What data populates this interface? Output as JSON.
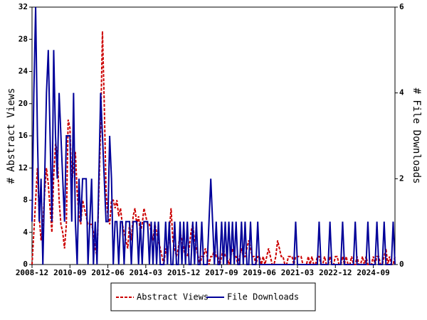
{
  "chart_data": {
    "type": "line",
    "ylabel": "# Abstract Views",
    "y2label": "# File Downloads",
    "x": [
      "2008-12",
      "2009-01",
      "2009-02",
      "2009-03",
      "2009-04",
      "2009-05",
      "2009-06",
      "2009-07",
      "2009-08",
      "2009-09",
      "2009-10",
      "2009-11",
      "2009-12",
      "2010-01",
      "2010-02",
      "2010-03",
      "2010-04",
      "2010-05",
      "2010-06",
      "2010-07",
      "2010-08",
      "2010-09",
      "2010-10",
      "2010-11",
      "2010-12",
      "2011-01",
      "2011-02",
      "2011-03",
      "2011-04",
      "2011-05",
      "2011-06",
      "2011-07",
      "2011-08",
      "2011-09",
      "2011-10",
      "2011-11",
      "2011-12",
      "2012-01",
      "2012-02",
      "2012-03",
      "2012-04",
      "2012-05",
      "2012-06",
      "2012-07",
      "2012-08",
      "2012-09",
      "2012-10",
      "2012-11",
      "2012-12",
      "2013-01",
      "2013-02",
      "2013-03",
      "2013-04",
      "2013-05",
      "2013-06",
      "2013-07",
      "2013-08",
      "2013-09",
      "2013-10",
      "2013-11",
      "2013-12",
      "2014-01",
      "2014-02",
      "2014-03",
      "2014-04",
      "2014-05",
      "2014-06",
      "2014-07",
      "2014-08",
      "2014-09",
      "2014-10",
      "2014-11",
      "2014-12",
      "2015-01",
      "2015-02",
      "2015-03",
      "2015-04",
      "2015-05",
      "2015-06",
      "2015-07",
      "2015-08",
      "2015-09",
      "2015-10",
      "2015-11",
      "2015-12",
      "2016-01",
      "2016-02",
      "2016-03",
      "2016-04",
      "2016-05",
      "2016-06",
      "2016-07",
      "2016-08",
      "2016-09",
      "2016-10",
      "2016-11",
      "2016-12",
      "2017-01",
      "2017-02",
      "2017-03",
      "2017-04",
      "2017-05",
      "2017-06",
      "2017-07",
      "2017-08",
      "2017-09",
      "2017-10",
      "2017-11",
      "2017-12",
      "2018-01",
      "2018-02",
      "2018-03",
      "2018-04",
      "2018-05",
      "2018-06",
      "2018-07",
      "2018-08",
      "2018-09",
      "2018-10",
      "2018-11",
      "2018-12",
      "2019-01",
      "2019-02",
      "2019-03",
      "2019-04",
      "2019-05",
      "2019-06",
      "2019-07",
      "2019-08",
      "2019-09",
      "2019-10",
      "2019-11",
      "2019-12",
      "2020-01",
      "2020-02",
      "2020-03",
      "2020-04",
      "2020-05",
      "2020-06",
      "2020-07",
      "2020-08",
      "2020-09",
      "2020-10",
      "2020-11",
      "2020-12",
      "2021-01",
      "2021-02",
      "2021-03",
      "2021-04",
      "2021-05",
      "2021-06",
      "2021-07",
      "2021-08",
      "2021-09",
      "2021-10",
      "2021-11",
      "2021-12",
      "2022-01",
      "2022-02",
      "2022-03",
      "2022-04",
      "2022-05",
      "2022-06",
      "2022-07",
      "2022-08",
      "2022-09",
      "2022-10",
      "2022-11",
      "2022-12",
      "2023-01",
      "2023-02",
      "2023-03",
      "2023-04",
      "2023-05",
      "2023-06",
      "2023-07",
      "2023-08",
      "2023-09",
      "2023-10",
      "2023-11",
      "2023-12",
      "2024-01",
      "2024-02",
      "2024-03",
      "2024-04",
      "2024-05",
      "2024-06",
      "2024-07",
      "2024-08",
      "2024-09",
      "2024-10",
      "2024-11",
      "2024-12",
      "2025-01",
      "2025-02",
      "2025-03",
      "2025-04",
      "2025-05",
      "2025-06",
      "2025-07",
      "2025-08",
      "2025-09"
    ],
    "series": [
      {
        "name": "Abstract Views",
        "color": "#cc0000",
        "dashed": true,
        "values": [
          0,
          4,
          8,
          12,
          6,
          3,
          5,
          9,
          12,
          10,
          7,
          4,
          11,
          15,
          14,
          8,
          5,
          4,
          2,
          5,
          18,
          17,
          10,
          12,
          14,
          9,
          6,
          5,
          8,
          7,
          6,
          5,
          5,
          5,
          4,
          2,
          1,
          9,
          17,
          29,
          20,
          9,
          6,
          5,
          8,
          8,
          7,
          8,
          6,
          7,
          5,
          4,
          3,
          2,
          5,
          3,
          6,
          7,
          5,
          6,
          4,
          5,
          7,
          6,
          5,
          5,
          4,
          3,
          5,
          4,
          3,
          2,
          1,
          0,
          2,
          1,
          4,
          7,
          3,
          2,
          1,
          2,
          4,
          3,
          2,
          1,
          1,
          2,
          4,
          5,
          3,
          2,
          1,
          0,
          1,
          1,
          2,
          1,
          0,
          1,
          1,
          2,
          1,
          1,
          0,
          1,
          2,
          1,
          1,
          0,
          1,
          2,
          1,
          1,
          0,
          1,
          2,
          1,
          1,
          2,
          3,
          2,
          1,
          1,
          0,
          1,
          1,
          0,
          1,
          0,
          1,
          2,
          1,
          0,
          0,
          1,
          3,
          2,
          1,
          1,
          0,
          0,
          1,
          1,
          1,
          0,
          1,
          1,
          1,
          1,
          0,
          0,
          0,
          1,
          0,
          1,
          0,
          0,
          1,
          1,
          0,
          0,
          1,
          0,
          0,
          1,
          0,
          0,
          1,
          1,
          0,
          0,
          1,
          0,
          1,
          0,
          0,
          1,
          0,
          0,
          1,
          0,
          0,
          1,
          0,
          1,
          0,
          0,
          0,
          1,
          0,
          1,
          1,
          0,
          0,
          1,
          2,
          0,
          1,
          0,
          0,
          1
        ]
      },
      {
        "name": "File Downloads",
        "color": "#000099",
        "axis": "y2",
        "values": [
          1,
          4,
          6,
          3,
          1,
          2,
          0,
          2,
          4,
          5,
          3,
          1,
          5,
          3,
          2,
          4,
          3,
          2,
          1,
          3,
          3,
          3,
          1,
          4,
          1,
          0,
          2,
          1,
          2,
          2,
          2,
          0,
          1,
          2,
          0,
          1,
          0,
          2,
          4,
          3,
          2,
          1,
          1,
          3,
          2,
          0,
          1,
          1,
          0,
          1,
          1,
          0,
          1,
          1,
          1,
          0,
          1,
          1,
          1,
          0,
          1,
          0,
          1,
          1,
          1,
          0,
          1,
          0,
          1,
          0,
          1,
          0,
          0,
          0,
          1,
          0,
          1,
          0,
          0,
          1,
          0,
          0,
          1,
          0,
          1,
          0,
          1,
          0,
          0,
          1,
          0,
          1,
          0,
          0,
          1,
          0,
          0,
          0,
          1,
          2,
          1,
          0,
          1,
          0,
          0,
          1,
          0,
          1,
          0,
          1,
          0,
          1,
          0,
          1,
          0,
          0,
          1,
          0,
          1,
          0,
          0,
          1,
          0,
          0,
          0,
          1,
          0,
          0,
          0,
          0,
          0,
          0,
          0,
          0,
          0,
          0,
          0,
          0,
          0,
          0,
          0,
          0,
          0,
          0,
          0,
          0,
          1,
          0,
          0,
          0,
          0,
          0,
          0,
          0,
          0,
          0,
          0,
          0,
          0,
          1,
          0,
          0,
          0,
          0,
          0,
          1,
          0,
          0,
          0,
          0,
          0,
          0,
          1,
          0,
          0,
          0,
          0,
          0,
          0,
          1,
          0,
          0,
          0,
          0,
          0,
          0,
          1,
          0,
          0,
          0,
          0,
          1,
          0,
          0,
          0,
          1,
          0,
          0,
          0,
          0,
          1,
          0
        ]
      }
    ],
    "xlim": [
      "2008-12",
      "2025-09"
    ],
    "xticks": [
      "2008-12",
      "2010-09",
      "2012-06",
      "2014-03",
      "2015-12",
      "2017-09",
      "2019-06",
      "2021-03",
      "2022-12",
      "2024-09"
    ],
    "ylim": [
      0,
      32
    ],
    "yticks": [
      0,
      4,
      8,
      12,
      16,
      20,
      24,
      28,
      32
    ],
    "y2lim": [
      0,
      6
    ],
    "y2ticks": [
      0,
      2,
      4,
      6
    ],
    "legend": "bottom"
  }
}
